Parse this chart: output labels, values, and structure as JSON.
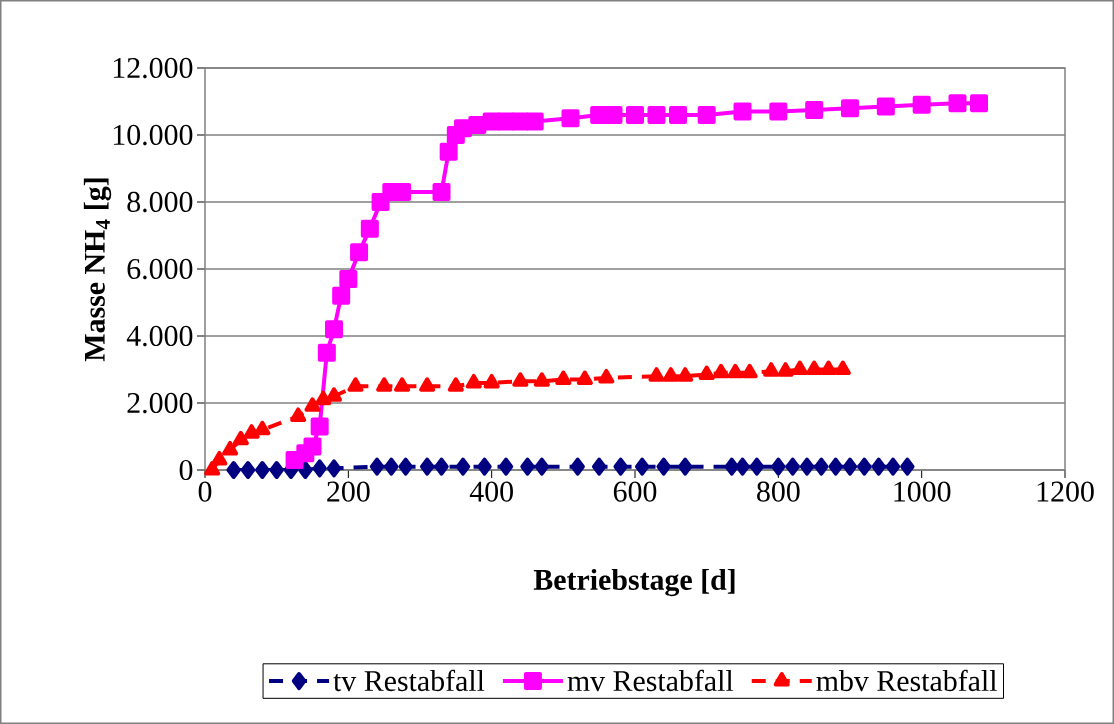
{
  "chart_data": {
    "type": "line",
    "xlabel": "Betriebstage [d]",
    "ylabel": "Masse NH$_{4}$ [g]",
    "xlim": [
      0,
      1200
    ],
    "xticks": [
      0,
      200,
      400,
      600,
      800,
      1000,
      1200
    ],
    "ylim": [
      0,
      12000
    ],
    "yticks": [
      0,
      {
        "value": 2000,
        "label": "2.000"
      },
      {
        "value": 4000,
        "label": "4.000"
      },
      {
        "value": 6000,
        "label": "6.000"
      },
      {
        "value": 8000,
        "label": "8.000"
      },
      {
        "value": 10000,
        "label": "10.000"
      },
      {
        "value": 12000,
        "label": "12.000"
      }
    ],
    "grid": "y",
    "legend": "bottom",
    "series": [
      {
        "name": "tv Restabfall",
        "color": "#000080",
        "marker": "diamond",
        "line_style": "dashed",
        "x": [
          40,
          60,
          80,
          100,
          120,
          140,
          160,
          180,
          240,
          260,
          280,
          310,
          330,
          360,
          390,
          420,
          450,
          470,
          520,
          550,
          580,
          610,
          640,
          670,
          735,
          750,
          770,
          800,
          820,
          840,
          860,
          880,
          900,
          920,
          940,
          960,
          980
        ],
        "values": [
          0,
          0,
          0,
          0,
          0,
          0,
          50,
          50,
          100,
          100,
          100,
          100,
          100,
          100,
          100,
          100,
          100,
          100,
          100,
          100,
          100,
          100,
          100,
          100,
          100,
          100,
          100,
          100,
          100,
          100,
          100,
          100,
          100,
          100,
          100,
          100,
          100
        ]
      },
      {
        "name": "mv Restabfall",
        "color": "#ff00ff",
        "marker": "square",
        "line_style": "solid",
        "x": [
          125,
          140,
          150,
          160,
          170,
          180,
          190,
          200,
          215,
          230,
          245,
          260,
          275,
          330,
          340,
          350,
          360,
          380,
          400,
          420,
          440,
          460,
          510,
          550,
          570,
          600,
          630,
          660,
          700,
          750,
          800,
          850,
          900,
          950,
          1000,
          1050,
          1080
        ],
        "values": [
          300,
          500,
          700,
          1300,
          3500,
          4200,
          5200,
          5700,
          6500,
          7200,
          8000,
          8300,
          8300,
          8300,
          9500,
          10000,
          10200,
          10300,
          10400,
          10400,
          10400,
          10400,
          10500,
          10600,
          10600,
          10600,
          10600,
          10600,
          10600,
          10700,
          10700,
          10750,
          10800,
          10850,
          10900,
          10950,
          10950
        ]
      },
      {
        "name": "mbv Restabfall",
        "color": "#ff0000",
        "marker": "triangle",
        "line_style": "dashed",
        "x": [
          10,
          20,
          35,
          50,
          65,
          80,
          130,
          150,
          165,
          180,
          210,
          250,
          275,
          310,
          350,
          375,
          400,
          440,
          470,
          500,
          530,
          560,
          630,
          650,
          670,
          700,
          720,
          740,
          760,
          790,
          810,
          830,
          850,
          870,
          890
        ],
        "values": [
          0,
          300,
          600,
          900,
          1100,
          1200,
          1600,
          1900,
          2100,
          2200,
          2500,
          2500,
          2500,
          2500,
          2500,
          2600,
          2600,
          2650,
          2650,
          2700,
          2700,
          2750,
          2800,
          2800,
          2800,
          2850,
          2900,
          2900,
          2900,
          2950,
          2950,
          3000,
          3000,
          3000,
          3000
        ]
      }
    ]
  }
}
